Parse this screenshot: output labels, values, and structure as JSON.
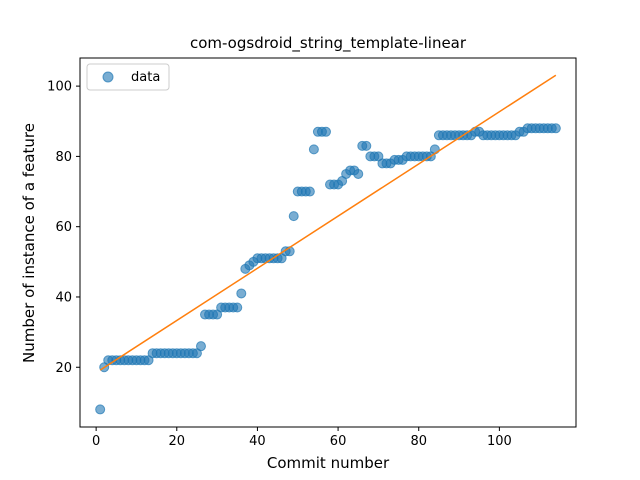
{
  "chart_data": {
    "type": "scatter",
    "title": "com-ogsdroid_string_template-linear",
    "xlabel": "Commit number",
    "ylabel": "Number of instance of a feature",
    "xlim": [
      -4,
      119
    ],
    "ylim": [
      3,
      108
    ],
    "xticks": [
      0,
      20,
      40,
      60,
      80,
      100
    ],
    "yticks": [
      20,
      40,
      60,
      80,
      100
    ],
    "grid": false,
    "legend_position": "top-left",
    "colors": {
      "scatter": "#1f77b4",
      "fit": "#ff7f0e"
    },
    "series": [
      {
        "name": "data",
        "kind": "scatter",
        "x": [
          1,
          2,
          3,
          4,
          5,
          6,
          7,
          8,
          9,
          10,
          11,
          12,
          13,
          14,
          15,
          16,
          17,
          18,
          19,
          20,
          21,
          22,
          23,
          24,
          25,
          26,
          27,
          28,
          29,
          30,
          31,
          32,
          33,
          34,
          35,
          36,
          37,
          38,
          39,
          40,
          41,
          42,
          43,
          44,
          45,
          46,
          47,
          48,
          49,
          50,
          51,
          52,
          53,
          54,
          55,
          56,
          57,
          58,
          59,
          60,
          61,
          62,
          63,
          64,
          65,
          66,
          67,
          68,
          69,
          70,
          71,
          72,
          73,
          74,
          75,
          76,
          77,
          78,
          79,
          80,
          81,
          82,
          83,
          84,
          85,
          86,
          87,
          88,
          89,
          90,
          91,
          92,
          93,
          94,
          95,
          96,
          97,
          98,
          99,
          100,
          101,
          102,
          103,
          104,
          105,
          106,
          107,
          108,
          109,
          110,
          111,
          112,
          113,
          114
        ],
        "y": [
          8,
          20,
          22,
          22,
          22,
          22,
          22,
          22,
          22,
          22,
          22,
          22,
          22,
          24,
          24,
          24,
          24,
          24,
          24,
          24,
          24,
          24,
          24,
          24,
          24,
          26,
          35,
          35,
          35,
          35,
          37,
          37,
          37,
          37,
          37,
          41,
          48,
          49,
          50,
          51,
          51,
          51,
          51,
          51,
          51,
          51,
          53,
          53,
          63,
          70,
          70,
          70,
          70,
          82,
          87,
          87,
          87,
          72,
          72,
          72,
          73,
          75,
          76,
          76,
          75,
          83,
          83,
          80,
          80,
          80,
          78,
          78,
          78,
          79,
          79,
          79,
          80,
          80,
          80,
          80,
          80,
          80,
          80,
          82,
          86,
          86,
          86,
          86,
          86,
          86,
          86,
          86,
          86,
          87,
          87,
          86,
          86,
          86,
          86,
          86,
          86,
          86,
          86,
          86,
          87,
          87,
          88,
          88,
          88,
          88,
          88,
          88,
          88,
          88
        ]
      },
      {
        "name": "",
        "kind": "line",
        "x": [
          1,
          114
        ],
        "y": [
          19.2,
          103.1
        ]
      }
    ]
  }
}
